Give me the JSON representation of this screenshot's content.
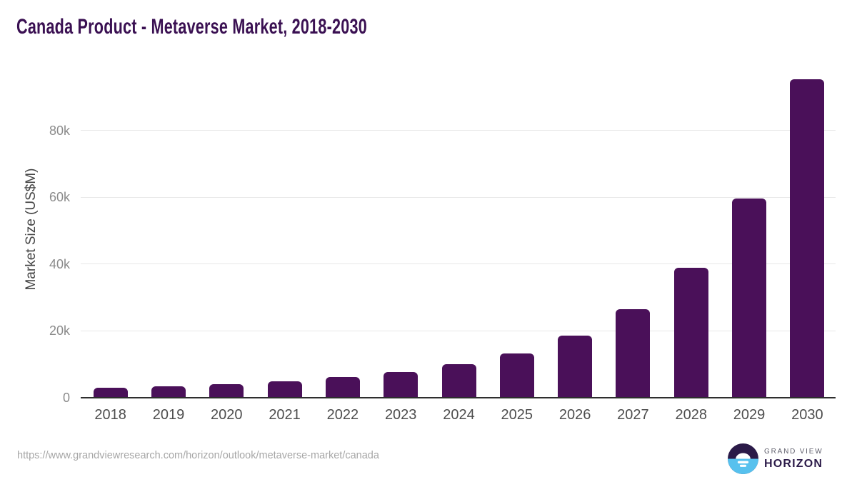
{
  "colors": {
    "title": "#3a1052",
    "bar": "#4a1059",
    "axis_line": "#2e2e2e",
    "gridline": "#e8e8e8",
    "ytick_text": "#8b8b8b",
    "xtick_text": "#4d4d4d",
    "url_text": "#a6a6a6",
    "logo_dark": "#2b1a48",
    "logo_blue": "#57c1ee"
  },
  "chart_data": {
    "type": "bar",
    "title": "Canada Product - Metaverse Market, 2018-2030",
    "categories": [
      "2018",
      "2019",
      "2020",
      "2021",
      "2022",
      "2023",
      "2024",
      "2025",
      "2026",
      "2027",
      "2028",
      "2029",
      "2030"
    ],
    "values": [
      2900,
      3400,
      4000,
      4800,
      6000,
      7500,
      9900,
      13200,
      18500,
      26400,
      38900,
      59600,
      95400
    ],
    "units": "US$M",
    "xlabel": "",
    "ylabel": "Market Size (US$M)",
    "yticks": [
      {
        "label": "0",
        "value": 0
      },
      {
        "label": "20k",
        "value": 20000
      },
      {
        "label": "40k",
        "value": 40000
      },
      {
        "label": "60k",
        "value": 60000
      },
      {
        "label": "80k",
        "value": 80000
      }
    ],
    "ylim": [
      0,
      97500
    ],
    "grid": true,
    "legend": false,
    "bar_color": "#4a1059"
  },
  "footer": {
    "source_url": "https://www.grandviewresearch.com/horizon/outlook/metaverse-market/canada",
    "logo": {
      "line1": "GRAND VIEW",
      "line2": "HORIZON",
      "icon": "horizon-sunrise-icon"
    }
  }
}
